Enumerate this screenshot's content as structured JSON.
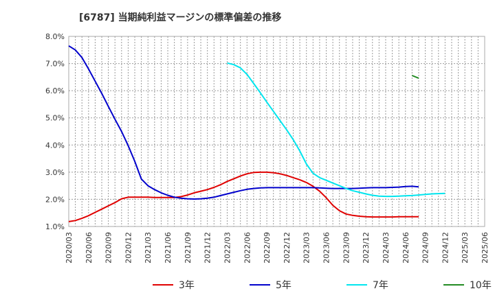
{
  "chart_data": {
    "type": "line",
    "title": "[6787]  当期純利益マージンの標準偏差の推移",
    "xlabel": "",
    "ylabel": "",
    "ylim": [
      1.0,
      8.0
    ],
    "y_ticks": [
      1.0,
      2.0,
      3.0,
      4.0,
      5.0,
      6.0,
      7.0,
      8.0
    ],
    "y_tick_labels": [
      "1.0%",
      "2.0%",
      "3.0%",
      "4.0%",
      "5.0%",
      "6.0%",
      "7.0%",
      "8.0%"
    ],
    "x_tick_labels": [
      "2020/03",
      "2020/06",
      "2020/09",
      "2020/12",
      "2021/03",
      "2021/06",
      "2021/09",
      "2021/12",
      "2022/03",
      "2022/06",
      "2022/09",
      "2022/12",
      "2023/03",
      "2023/06",
      "2023/09",
      "2023/12",
      "2024/03",
      "2024/06",
      "2024/09",
      "2024/12",
      "2025/03",
      "2025/06"
    ],
    "grid": true,
    "legend_position": "bottom",
    "series": [
      {
        "name": "3年",
        "color": "#e00000",
        "points": [
          [
            0,
            1.18
          ],
          [
            1,
            1.22
          ],
          [
            2,
            1.3
          ],
          [
            3,
            1.4
          ],
          [
            4,
            1.52
          ],
          [
            5,
            1.64
          ],
          [
            6,
            1.76
          ],
          [
            7,
            1.88
          ],
          [
            8,
            2.02
          ],
          [
            9,
            2.08
          ],
          [
            10,
            2.08
          ],
          [
            11,
            2.08
          ],
          [
            12,
            2.08
          ],
          [
            13,
            2.07
          ],
          [
            14,
            2.07
          ],
          [
            15,
            2.07
          ],
          [
            16,
            2.07
          ],
          [
            17,
            2.1
          ],
          [
            18,
            2.16
          ],
          [
            19,
            2.24
          ],
          [
            20,
            2.3
          ],
          [
            21,
            2.36
          ],
          [
            22,
            2.44
          ],
          [
            23,
            2.54
          ],
          [
            24,
            2.66
          ],
          [
            25,
            2.76
          ],
          [
            26,
            2.86
          ],
          [
            27,
            2.94
          ],
          [
            28,
            2.99
          ],
          [
            29,
            3.0
          ],
          [
            30,
            3.0
          ],
          [
            31,
            2.98
          ],
          [
            32,
            2.94
          ],
          [
            33,
            2.88
          ],
          [
            34,
            2.8
          ],
          [
            35,
            2.72
          ],
          [
            36,
            2.62
          ],
          [
            37,
            2.48
          ],
          [
            38,
            2.3
          ],
          [
            39,
            2.06
          ],
          [
            40,
            1.78
          ],
          [
            41,
            1.58
          ],
          [
            42,
            1.46
          ],
          [
            43,
            1.41
          ],
          [
            44,
            1.38
          ],
          [
            45,
            1.36
          ],
          [
            46,
            1.35
          ],
          [
            47,
            1.35
          ],
          [
            48,
            1.35
          ],
          [
            49,
            1.35
          ],
          [
            50,
            1.36
          ],
          [
            51,
            1.36
          ],
          [
            52,
            1.36
          ],
          [
            53,
            1.36
          ]
        ]
      },
      {
        "name": "5年",
        "color": "#0000cc",
        "points": [
          [
            0,
            7.65
          ],
          [
            1,
            7.5
          ],
          [
            2,
            7.22
          ],
          [
            3,
            6.8
          ],
          [
            4,
            6.35
          ],
          [
            5,
            5.9
          ],
          [
            6,
            5.42
          ],
          [
            7,
            4.95
          ],
          [
            8,
            4.5
          ],
          [
            9,
            3.98
          ],
          [
            10,
            3.4
          ],
          [
            11,
            2.75
          ],
          [
            12,
            2.5
          ],
          [
            13,
            2.36
          ],
          [
            14,
            2.24
          ],
          [
            15,
            2.15
          ],
          [
            16,
            2.08
          ],
          [
            17,
            2.04
          ],
          [
            18,
            2.02
          ],
          [
            19,
            2.01
          ],
          [
            20,
            2.02
          ],
          [
            21,
            2.04
          ],
          [
            22,
            2.08
          ],
          [
            23,
            2.14
          ],
          [
            24,
            2.2
          ],
          [
            25,
            2.26
          ],
          [
            26,
            2.32
          ],
          [
            27,
            2.37
          ],
          [
            28,
            2.4
          ],
          [
            29,
            2.42
          ],
          [
            30,
            2.43
          ],
          [
            31,
            2.43
          ],
          [
            32,
            2.43
          ],
          [
            33,
            2.43
          ],
          [
            34,
            2.43
          ],
          [
            35,
            2.43
          ],
          [
            36,
            2.43
          ],
          [
            37,
            2.43
          ],
          [
            38,
            2.42
          ],
          [
            39,
            2.41
          ],
          [
            40,
            2.4
          ],
          [
            41,
            2.4
          ],
          [
            42,
            2.4
          ],
          [
            43,
            2.4
          ],
          [
            44,
            2.41
          ],
          [
            45,
            2.42
          ],
          [
            46,
            2.43
          ],
          [
            47,
            2.43
          ],
          [
            48,
            2.43
          ],
          [
            49,
            2.44
          ],
          [
            50,
            2.45
          ],
          [
            51,
            2.47
          ],
          [
            52,
            2.48
          ],
          [
            53,
            2.46
          ]
        ]
      },
      {
        "name": "7年",
        "color": "#00e5ee",
        "points": [
          [
            24,
            7.02
          ],
          [
            25,
            6.96
          ],
          [
            26,
            6.84
          ],
          [
            27,
            6.6
          ],
          [
            28,
            6.27
          ],
          [
            29,
            5.93
          ],
          [
            30,
            5.58
          ],
          [
            31,
            5.24
          ],
          [
            32,
            4.9
          ],
          [
            33,
            4.56
          ],
          [
            34,
            4.2
          ],
          [
            35,
            3.78
          ],
          [
            36,
            3.3
          ],
          [
            37,
            2.96
          ],
          [
            38,
            2.8
          ],
          [
            39,
            2.7
          ],
          [
            40,
            2.6
          ],
          [
            41,
            2.5
          ],
          [
            42,
            2.4
          ],
          [
            43,
            2.32
          ],
          [
            44,
            2.26
          ],
          [
            45,
            2.2
          ],
          [
            46,
            2.15
          ],
          [
            47,
            2.12
          ],
          [
            48,
            2.11
          ],
          [
            49,
            2.11
          ],
          [
            50,
            2.12
          ],
          [
            51,
            2.13
          ],
          [
            52,
            2.14
          ],
          [
            53,
            2.16
          ],
          [
            54,
            2.18
          ],
          [
            55,
            2.2
          ],
          [
            56,
            2.21
          ],
          [
            57,
            2.22
          ]
        ]
      },
      {
        "name": "10年",
        "color": "#228b22",
        "points": [
          [
            52,
            6.56
          ],
          [
            53,
            6.46
          ]
        ]
      }
    ]
  }
}
